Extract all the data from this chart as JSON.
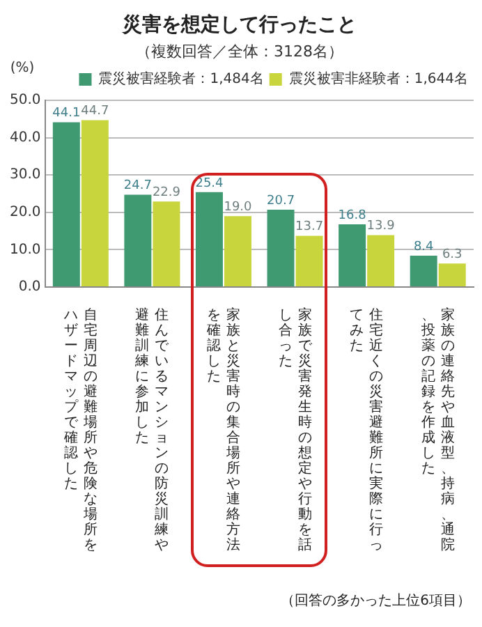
{
  "chart_data": {
    "type": "bar",
    "title": "災害を想定して行ったこと",
    "subtitle": "（複数回答／全体：3128名）",
    "ylabel": "(%)",
    "categories": [
      "自宅周辺の避難場所や危険な場所をハザードマップで確認した",
      "住んでいるマンションの防災訓練や避難訓練に参加した",
      "家族と災害時の集合場所や連絡方法を確認した",
      "家族で災害発生時の想定や行動を話し合った",
      "住宅近くの災害避難所に実際に行ってみた",
      "家族の連絡先や血液型、持病、通院、投薬の記録を作成した"
    ],
    "series": [
      {
        "name": "震災被害経験者：1,484名",
        "color": "#3f9a72",
        "values": [
          44.1,
          24.7,
          25.4,
          20.7,
          16.8,
          8.4
        ],
        "value_labels": [
          "44.1",
          "24.7",
          "25.4",
          "20.7",
          "16.8",
          "8.4"
        ]
      },
      {
        "name": "震災被害非経験者：1,644名",
        "color": "#c9d53c",
        "values": [
          44.7,
          22.9,
          19.0,
          13.7,
          13.9,
          6.3
        ],
        "value_labels": [
          "44.7",
          "22.9",
          "19.0",
          "13.7",
          "13.9",
          "6.3"
        ]
      }
    ],
    "ylim": [
      0,
      50
    ],
    "yticks": [
      {
        "value": 0,
        "label": "0.0"
      },
      {
        "value": 10,
        "label": "10.0"
      },
      {
        "value": 20,
        "label": "20.0"
      },
      {
        "value": 30,
        "label": "30.0"
      },
      {
        "value": 40,
        "label": "40.0"
      },
      {
        "value": 50,
        "label": "50.0"
      }
    ],
    "grid": "y",
    "legend": "top right",
    "annotations": [
      "（回答の多かった上位6項目）"
    ]
  }
}
